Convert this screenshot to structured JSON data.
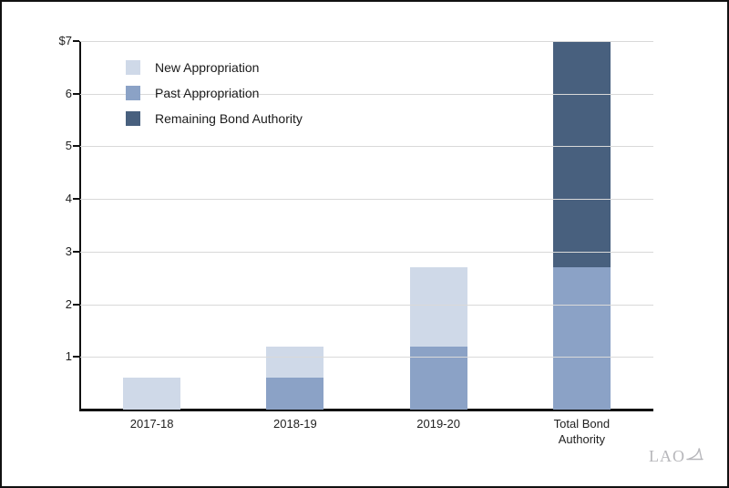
{
  "chart_data": {
    "type": "bar",
    "stacked": true,
    "categories": [
      "2017-18",
      "2018-19",
      "2019-20",
      "Total Bond\nAuthority"
    ],
    "series": [
      {
        "name": "New Appropriation",
        "color": "#cfd9e8",
        "values": [
          0.6,
          0.6,
          1.5,
          0
        ]
      },
      {
        "name": "Past Appropriation",
        "color": "#8ba2c6",
        "values": [
          0,
          0.6,
          1.2,
          2.7
        ]
      },
      {
        "name": "Remaining Bond Authority",
        "color": "#48607e",
        "values": [
          0,
          0,
          0,
          4.3
        ]
      }
    ],
    "stack_order": [
      "Past Appropriation",
      "New Appropriation",
      "Remaining Bond Authority"
    ],
    "legend_order": [
      "New Appropriation",
      "Past Appropriation",
      "Remaining Bond Authority"
    ],
    "legend_position": "top-left-inside",
    "ylim": [
      0,
      7
    ],
    "yticks": [
      1,
      2,
      3,
      4,
      5,
      6,
      7
    ],
    "ytick_labels": [
      "1",
      "2",
      "3",
      "4",
      "5",
      "6",
      "$7"
    ],
    "grid": "horizontal",
    "colors": {
      "gridline": "#d9d9d9",
      "axis": "#111111",
      "text": "#1f1f1f",
      "logo": "#b7b7bb"
    }
  },
  "branding": {
    "logo_text": "LAO"
  }
}
